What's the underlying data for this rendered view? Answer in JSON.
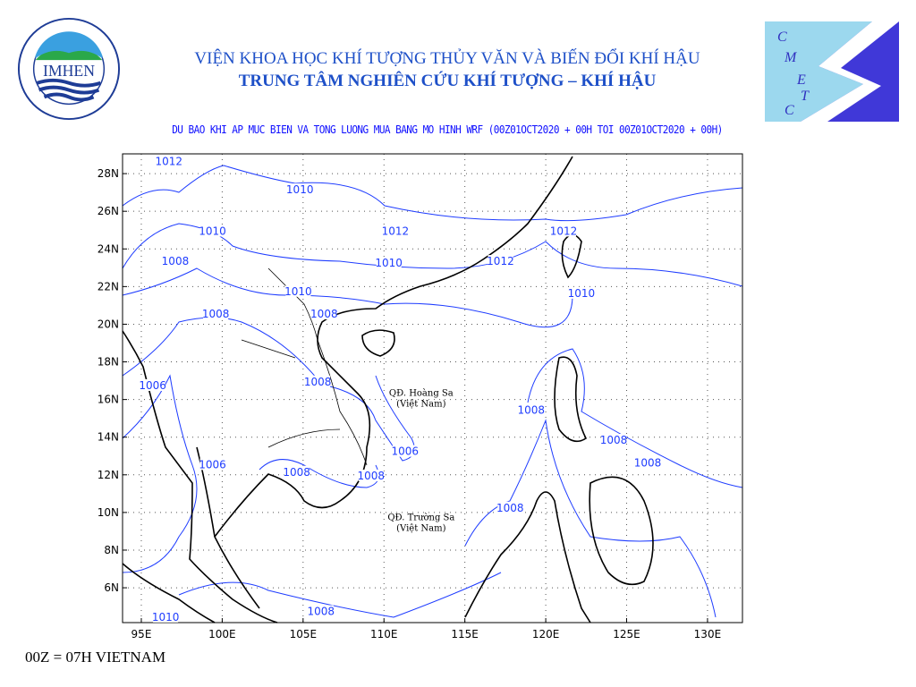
{
  "header": {
    "title_line1": "VIỆN KHOA HỌC KHÍ TƯỢNG THỦY VĂN VÀ BIẾN ĐỔI KHÍ HẬU",
    "title_line2": "TRUNG TÂM NGHIÊN CỨU KHÍ TƯỢNG – KHÍ HẬU",
    "subtitle": "DU BAO KHI AP MUC BIEN VA TONG LUONG MUA BANG MO HINH WRF (00Z01OCT2020 + 00H TOI 00Z01OCT2020 + 00H)"
  },
  "logos": {
    "left": {
      "text": "IMHEN",
      "ring_text": "VIỆN KHOA HỌC KHÍ TƯỢNG THỦY VĂN VÀ BIẾN ĐỔI KHÍ HẬU"
    },
    "right": {
      "text": "CMETC"
    }
  },
  "map": {
    "lon_range": [
      93.84,
      132.16
    ],
    "lat_range": [
      4.15,
      29.05
    ],
    "x_ticks": [
      "95E",
      "100E",
      "105E",
      "110E",
      "115E",
      "120E",
      "125E",
      "130E"
    ],
    "x_tick_values": [
      95,
      100,
      105,
      110,
      115,
      120,
      125,
      130
    ],
    "y_ticks": [
      "28N",
      "26N",
      "24N",
      "22N",
      "20N",
      "18N",
      "16N",
      "14N",
      "12N",
      "10N",
      "8N",
      "6N"
    ],
    "y_tick_values": [
      28,
      26,
      24,
      22,
      20,
      18,
      16,
      14,
      12,
      10,
      8,
      6
    ],
    "grid": "dotted",
    "contour_color": "#1e3cff",
    "coast_color": "#000000",
    "contour_labels": [
      {
        "text": "1012",
        "lon": 96.7,
        "lat": 28.5
      },
      {
        "text": "1010",
        "lon": 104.8,
        "lat": 27.0
      },
      {
        "text": "1010",
        "lon": 99.4,
        "lat": 24.8
      },
      {
        "text": "1008",
        "lon": 97.1,
        "lat": 23.2
      },
      {
        "text": "1012",
        "lon": 110.7,
        "lat": 24.8
      },
      {
        "text": "1010",
        "lon": 110.3,
        "lat": 23.1
      },
      {
        "text": "1012",
        "lon": 117.2,
        "lat": 23.2
      },
      {
        "text": "1012",
        "lon": 121.1,
        "lat": 24.8
      },
      {
        "text": "1010",
        "lon": 122.2,
        "lat": 21.5
      },
      {
        "text": "1010",
        "lon": 104.7,
        "lat": 21.6
      },
      {
        "text": "1008",
        "lon": 106.3,
        "lat": 20.4
      },
      {
        "text": "1008",
        "lon": 99.6,
        "lat": 20.4
      },
      {
        "text": "1006",
        "lon": 95.7,
        "lat": 16.6
      },
      {
        "text": "1008",
        "lon": 105.9,
        "lat": 16.8
      },
      {
        "text": "1008",
        "lon": 119.1,
        "lat": 15.3
      },
      {
        "text": "1006",
        "lon": 111.3,
        "lat": 13.1
      },
      {
        "text": "1008",
        "lon": 124.2,
        "lat": 13.7
      },
      {
        "text": "1008",
        "lon": 126.3,
        "lat": 12.5
      },
      {
        "text": "1006",
        "lon": 99.4,
        "lat": 12.4
      },
      {
        "text": "1008",
        "lon": 104.6,
        "lat": 12.0
      },
      {
        "text": "1008",
        "lon": 109.2,
        "lat": 11.8
      },
      {
        "text": "1008",
        "lon": 117.8,
        "lat": 10.1
      },
      {
        "text": "1008",
        "lon": 106.1,
        "lat": 4.6
      },
      {
        "text": "1010",
        "lon": 96.5,
        "lat": 4.3
      }
    ],
    "islands": [
      {
        "line1": "QĐ. Hoàng Sa",
        "line2": "(Việt Nam)",
        "lon": 112.3,
        "lat": 16.2
      },
      {
        "line1": "QĐ. Trường Sa",
        "line2": "(Việt Nam)",
        "lon": 112.3,
        "lat": 9.6
      }
    ]
  },
  "footnote": "00Z = 07H VIETNAM"
}
